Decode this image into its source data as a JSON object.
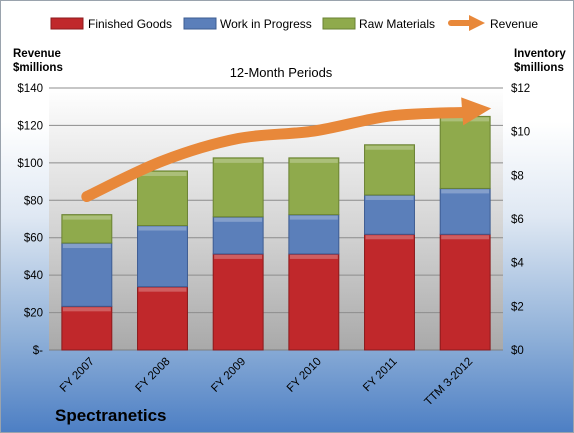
{
  "chart_data": {
    "type": "bar",
    "stacked": true,
    "subtitle": "12-Month Periods",
    "company": "Spectranetics",
    "left_axis_title": [
      "Revenue",
      "$millions"
    ],
    "right_axis_title": [
      "Inventory",
      "$millions"
    ],
    "categories": [
      "FY 2007",
      "FY 2008",
      "FY 2009",
      "FY 2010",
      "FY 2011",
      "TTM 3-2012"
    ],
    "left_ticks": [
      "$-",
      "$20",
      "$40",
      "$60",
      "$80",
      "$100",
      "$120",
      "$140"
    ],
    "right_ticks": [
      "$0",
      "$2",
      "$4",
      "$6",
      "$8",
      "$10",
      "$12"
    ],
    "left_ylim": [
      0,
      140
    ],
    "right_ylim": [
      0,
      12
    ],
    "legend_position": "top",
    "grid": true,
    "series": [
      {
        "name": "Finished Goods",
        "axis": "right",
        "color": "#c0282b",
        "values": [
          2.0,
          2.9,
          4.4,
          4.4,
          5.3,
          5.3
        ]
      },
      {
        "name": "Work in Progress",
        "axis": "right",
        "color": "#5b7fba",
        "values": [
          2.9,
          2.8,
          1.7,
          1.8,
          1.8,
          2.1
        ]
      },
      {
        "name": "Raw Materials",
        "axis": "right",
        "color": "#8faa4c",
        "values": [
          1.3,
          2.5,
          2.7,
          2.6,
          2.3,
          3.3
        ]
      },
      {
        "name": "Revenue",
        "axis": "left",
        "type": "line",
        "color": "#e8883a",
        "values": [
          82,
          101,
          113,
          117,
          125,
          127
        ]
      }
    ]
  }
}
